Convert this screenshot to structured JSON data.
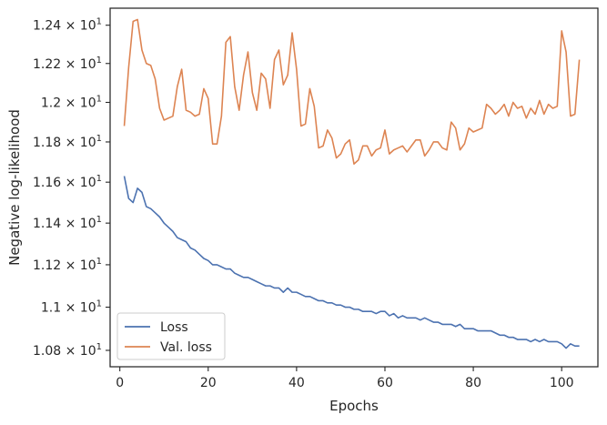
{
  "chart_data": {
    "type": "line",
    "xlabel": "Epochs",
    "ylabel": "Negative log-likelihood",
    "xlim": [
      -2.2,
      108.2
    ],
    "ylim": [
      10.725,
      12.49
    ],
    "y_scale": "log",
    "x_ticks": [
      0,
      20,
      40,
      60,
      80,
      100
    ],
    "x_tick_labels": [
      "0",
      "20",
      "40",
      "60",
      "80",
      "100"
    ],
    "y_ticks": [
      10.8,
      11.0,
      11.2,
      11.4,
      11.6,
      11.8,
      12.0,
      12.2,
      12.4
    ],
    "y_tick_labels": [
      {
        "mantissa": "1.08",
        "base": "10",
        "exp": "1"
      },
      {
        "mantissa": "1.1",
        "base": "10",
        "exp": "1"
      },
      {
        "mantissa": "1.12",
        "base": "10",
        "exp": "1"
      },
      {
        "mantissa": "1.14",
        "base": "10",
        "exp": "1"
      },
      {
        "mantissa": "1.16",
        "base": "10",
        "exp": "1"
      },
      {
        "mantissa": "1.18",
        "base": "10",
        "exp": "1"
      },
      {
        "mantissa": "1.2",
        "base": "10",
        "exp": "1"
      },
      {
        "mantissa": "1.22",
        "base": "10",
        "exp": "1"
      },
      {
        "mantissa": "1.24",
        "base": "10",
        "exp": "1"
      }
    ],
    "grid": false,
    "legend_position": "lower-left",
    "series": [
      {
        "name": "Loss",
        "color": "#4c72b0",
        "points": [
          [
            1,
            11.63
          ],
          [
            2,
            11.52
          ],
          [
            3,
            11.5
          ],
          [
            4,
            11.57
          ],
          [
            5,
            11.55
          ],
          [
            6,
            11.48
          ],
          [
            7,
            11.47
          ],
          [
            8,
            11.45
          ],
          [
            9,
            11.43
          ],
          [
            10,
            11.4
          ],
          [
            11,
            11.38
          ],
          [
            12,
            11.36
          ],
          [
            13,
            11.33
          ],
          [
            14,
            11.32
          ],
          [
            15,
            11.31
          ],
          [
            16,
            11.28
          ],
          [
            17,
            11.27
          ],
          [
            18,
            11.25
          ],
          [
            19,
            11.23
          ],
          [
            20,
            11.22
          ],
          [
            21,
            11.2
          ],
          [
            22,
            11.2
          ],
          [
            23,
            11.19
          ],
          [
            24,
            11.18
          ],
          [
            25,
            11.18
          ],
          [
            26,
            11.16
          ],
          [
            27,
            11.15
          ],
          [
            28,
            11.14
          ],
          [
            29,
            11.14
          ],
          [
            30,
            11.13
          ],
          [
            31,
            11.12
          ],
          [
            32,
            11.11
          ],
          [
            33,
            11.1
          ],
          [
            34,
            11.1
          ],
          [
            35,
            11.09
          ],
          [
            36,
            11.09
          ],
          [
            37,
            11.07
          ],
          [
            38,
            11.09
          ],
          [
            39,
            11.07
          ],
          [
            40,
            11.07
          ],
          [
            41,
            11.06
          ],
          [
            42,
            11.05
          ],
          [
            43,
            11.05
          ],
          [
            44,
            11.04
          ],
          [
            45,
            11.03
          ],
          [
            46,
            11.03
          ],
          [
            47,
            11.02
          ],
          [
            48,
            11.02
          ],
          [
            49,
            11.01
          ],
          [
            50,
            11.01
          ],
          [
            51,
            11.0
          ],
          [
            52,
            11.0
          ],
          [
            53,
            10.99
          ],
          [
            54,
            10.99
          ],
          [
            55,
            10.98
          ],
          [
            56,
            10.98
          ],
          [
            57,
            10.98
          ],
          [
            58,
            10.97
          ],
          [
            59,
            10.98
          ],
          [
            60,
            10.98
          ],
          [
            61,
            10.96
          ],
          [
            62,
            10.97
          ],
          [
            63,
            10.95
          ],
          [
            64,
            10.96
          ],
          [
            65,
            10.95
          ],
          [
            66,
            10.95
          ],
          [
            67,
            10.95
          ],
          [
            68,
            10.94
          ],
          [
            69,
            10.95
          ],
          [
            70,
            10.94
          ],
          [
            71,
            10.93
          ],
          [
            72,
            10.93
          ],
          [
            73,
            10.92
          ],
          [
            74,
            10.92
          ],
          [
            75,
            10.92
          ],
          [
            76,
            10.91
          ],
          [
            77,
            10.92
          ],
          [
            78,
            10.9
          ],
          [
            79,
            10.9
          ],
          [
            80,
            10.9
          ],
          [
            81,
            10.89
          ],
          [
            82,
            10.89
          ],
          [
            83,
            10.89
          ],
          [
            84,
            10.89
          ],
          [
            85,
            10.88
          ],
          [
            86,
            10.87
          ],
          [
            87,
            10.87
          ],
          [
            88,
            10.86
          ],
          [
            89,
            10.86
          ],
          [
            90,
            10.85
          ],
          [
            91,
            10.85
          ],
          [
            92,
            10.85
          ],
          [
            93,
            10.84
          ],
          [
            94,
            10.85
          ],
          [
            95,
            10.84
          ],
          [
            96,
            10.85
          ],
          [
            97,
            10.84
          ],
          [
            98,
            10.84
          ],
          [
            99,
            10.84
          ],
          [
            100,
            10.83
          ],
          [
            101,
            10.81
          ],
          [
            102,
            10.83
          ],
          [
            103,
            10.82
          ],
          [
            104,
            10.82
          ]
        ]
      },
      {
        "name": "Val. loss",
        "color": "#dd8452",
        "points": [
          [
            1,
            11.88
          ],
          [
            2,
            12.18
          ],
          [
            3,
            12.42
          ],
          [
            4,
            12.43
          ],
          [
            5,
            12.27
          ],
          [
            6,
            12.2
          ],
          [
            7,
            12.19
          ],
          [
            8,
            12.12
          ],
          [
            9,
            11.97
          ],
          [
            10,
            11.91
          ],
          [
            11,
            11.92
          ],
          [
            12,
            11.93
          ],
          [
            13,
            12.08
          ],
          [
            14,
            12.17
          ],
          [
            15,
            11.96
          ],
          [
            16,
            11.95
          ],
          [
            17,
            11.93
          ],
          [
            18,
            11.94
          ],
          [
            19,
            12.07
          ],
          [
            20,
            12.02
          ],
          [
            21,
            11.79
          ],
          [
            22,
            11.79
          ],
          [
            23,
            11.93
          ],
          [
            24,
            12.31
          ],
          [
            25,
            12.34
          ],
          [
            26,
            12.08
          ],
          [
            27,
            11.96
          ],
          [
            28,
            12.14
          ],
          [
            29,
            12.26
          ],
          [
            30,
            12.05
          ],
          [
            31,
            11.96
          ],
          [
            32,
            12.15
          ],
          [
            33,
            12.12
          ],
          [
            34,
            11.97
          ],
          [
            35,
            12.22
          ],
          [
            36,
            12.27
          ],
          [
            37,
            12.09
          ],
          [
            38,
            12.14
          ],
          [
            39,
            12.36
          ],
          [
            40,
            12.17
          ],
          [
            41,
            11.88
          ],
          [
            42,
            11.89
          ],
          [
            43,
            12.07
          ],
          [
            44,
            11.98
          ],
          [
            45,
            11.77
          ],
          [
            46,
            11.78
          ],
          [
            47,
            11.86
          ],
          [
            48,
            11.82
          ],
          [
            49,
            11.72
          ],
          [
            50,
            11.74
          ],
          [
            51,
            11.79
          ],
          [
            52,
            11.81
          ],
          [
            53,
            11.69
          ],
          [
            54,
            11.71
          ],
          [
            55,
            11.78
          ],
          [
            56,
            11.78
          ],
          [
            57,
            11.73
          ],
          [
            58,
            11.76
          ],
          [
            59,
            11.77
          ],
          [
            60,
            11.86
          ],
          [
            61,
            11.74
          ],
          [
            62,
            11.76
          ],
          [
            63,
            11.77
          ],
          [
            64,
            11.78
          ],
          [
            65,
            11.75
          ],
          [
            66,
            11.78
          ],
          [
            67,
            11.81
          ],
          [
            68,
            11.81
          ],
          [
            69,
            11.73
          ],
          [
            70,
            11.76
          ],
          [
            71,
            11.8
          ],
          [
            72,
            11.8
          ],
          [
            73,
            11.77
          ],
          [
            74,
            11.76
          ],
          [
            75,
            11.9
          ],
          [
            76,
            11.87
          ],
          [
            77,
            11.76
          ],
          [
            78,
            11.79
          ],
          [
            79,
            11.87
          ],
          [
            80,
            11.85
          ],
          [
            81,
            11.86
          ],
          [
            82,
            11.87
          ],
          [
            83,
            11.99
          ],
          [
            84,
            11.97
          ],
          [
            85,
            11.94
          ],
          [
            86,
            11.96
          ],
          [
            87,
            11.99
          ],
          [
            88,
            11.93
          ],
          [
            89,
            12.0
          ],
          [
            90,
            11.97
          ],
          [
            91,
            11.98
          ],
          [
            92,
            11.92
          ],
          [
            93,
            11.97
          ],
          [
            94,
            11.94
          ],
          [
            95,
            12.01
          ],
          [
            96,
            11.94
          ],
          [
            97,
            11.99
          ],
          [
            98,
            11.97
          ],
          [
            99,
            11.98
          ],
          [
            100,
            12.37
          ],
          [
            101,
            12.26
          ],
          [
            102,
            11.93
          ],
          [
            103,
            11.94
          ],
          [
            104,
            12.22
          ]
        ]
      }
    ]
  }
}
